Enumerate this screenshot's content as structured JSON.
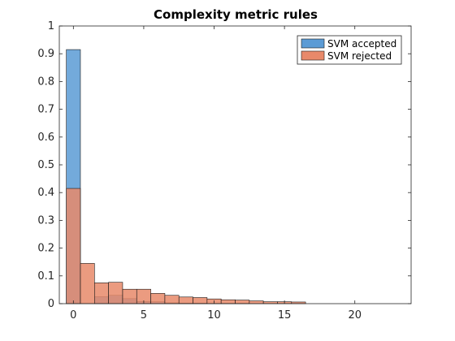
{
  "chart_data": {
    "type": "bar",
    "title": "Complexity metric rules",
    "xlabel": "",
    "ylabel": "",
    "xlim": [
      -1,
      24
    ],
    "ylim": [
      0,
      1
    ],
    "xticks": [
      0,
      5,
      10,
      15,
      20
    ],
    "yticks": [
      0,
      0.1,
      0.2,
      0.3,
      0.4,
      0.5,
      0.6,
      0.7,
      0.8,
      0.9,
      1
    ],
    "grid": false,
    "legend_position": "top-right",
    "bin_edges": [
      -0.5,
      0.5,
      1.5,
      2.5,
      3.5,
      4.5,
      5.5,
      6.5,
      7.5,
      8.5,
      9.5,
      10.5,
      11.5,
      12.5,
      13.5,
      14.5,
      15.5,
      16.5
    ],
    "series": [
      {
        "name": "SVM accepted",
        "color": "#5b9bd5",
        "values": [
          0.915,
          0.0,
          0.025,
          0.03,
          0.018,
          0.008,
          0.007,
          0.003,
          0.002,
          0.002,
          0.001,
          0.001,
          0.001,
          0.0,
          0.0,
          0.0,
          0.0
        ]
      },
      {
        "name": "SVM rejected",
        "color": "#e8896a",
        "values": [
          0.415,
          0.145,
          0.075,
          0.077,
          0.052,
          0.052,
          0.037,
          0.03,
          0.024,
          0.022,
          0.017,
          0.014,
          0.013,
          0.01,
          0.007,
          0.007,
          0.006
        ]
      }
    ]
  }
}
